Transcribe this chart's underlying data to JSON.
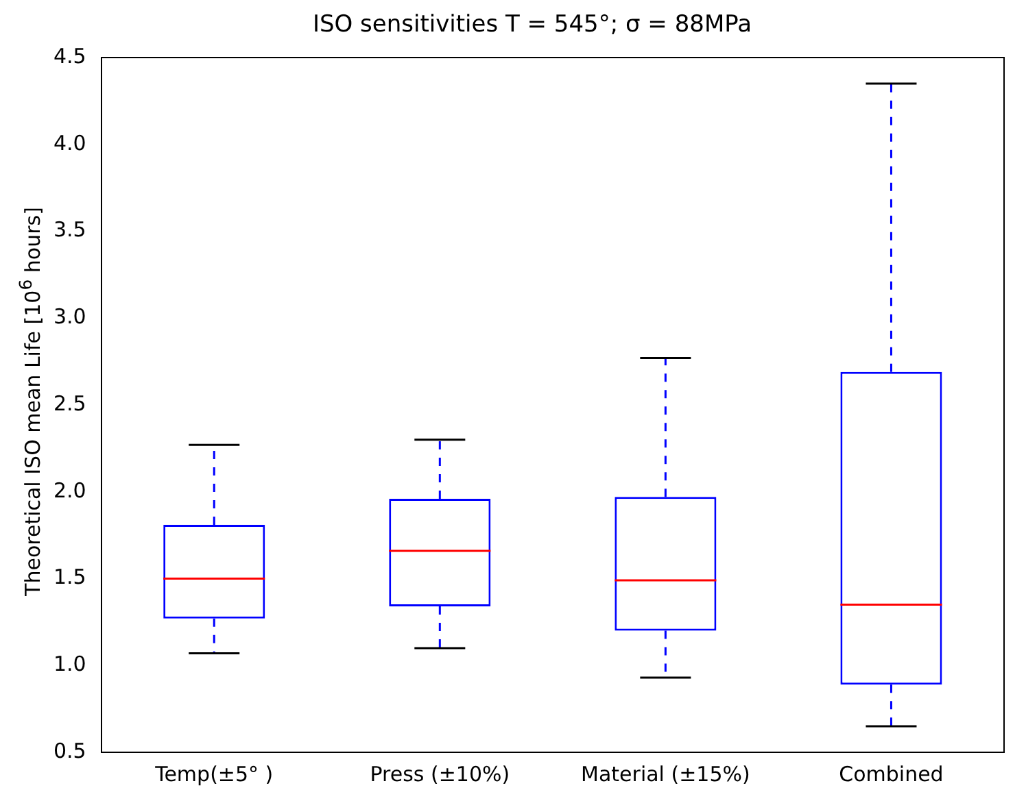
{
  "chart_data": {
    "type": "box",
    "title": "ISO sensitivities T = 545°; σ = 88MPa",
    "ylabel": "Theoretical ISO mean Life [10$^{6}$ hours]",
    "categories": [
      "Temp(±5° )",
      "Press (±10%)",
      "Material (±15%)",
      "Combined"
    ],
    "series": [
      {
        "color": "#0000ff",
        "boxes": [
          {
            "low": 1.07,
            "q1": 1.27,
            "median": 1.5,
            "q3": 1.81,
            "high": 2.27
          },
          {
            "low": 1.1,
            "q1": 1.34,
            "median": 1.66,
            "q3": 1.96,
            "high": 2.3
          },
          {
            "low": 0.93,
            "q1": 1.2,
            "median": 1.49,
            "q3": 1.97,
            "high": 2.77
          },
          {
            "low": 0.65,
            "q1": 0.89,
            "median": 1.35,
            "q3": 2.69,
            "high": 4.35
          }
        ]
      }
    ],
    "ylim": [
      0.5,
      4.5
    ],
    "yticks": [
      0.5,
      {
        "value": 1,
        "label": "1.0"
      },
      1.5,
      {
        "value": 2,
        "label": "2.0"
      },
      2.5,
      {
        "value": 3,
        "label": "3.0"
      },
      3.5,
      {
        "value": 4,
        "label": "4.0"
      },
      4.5
    ],
    "grid": false,
    "legend": false
  }
}
